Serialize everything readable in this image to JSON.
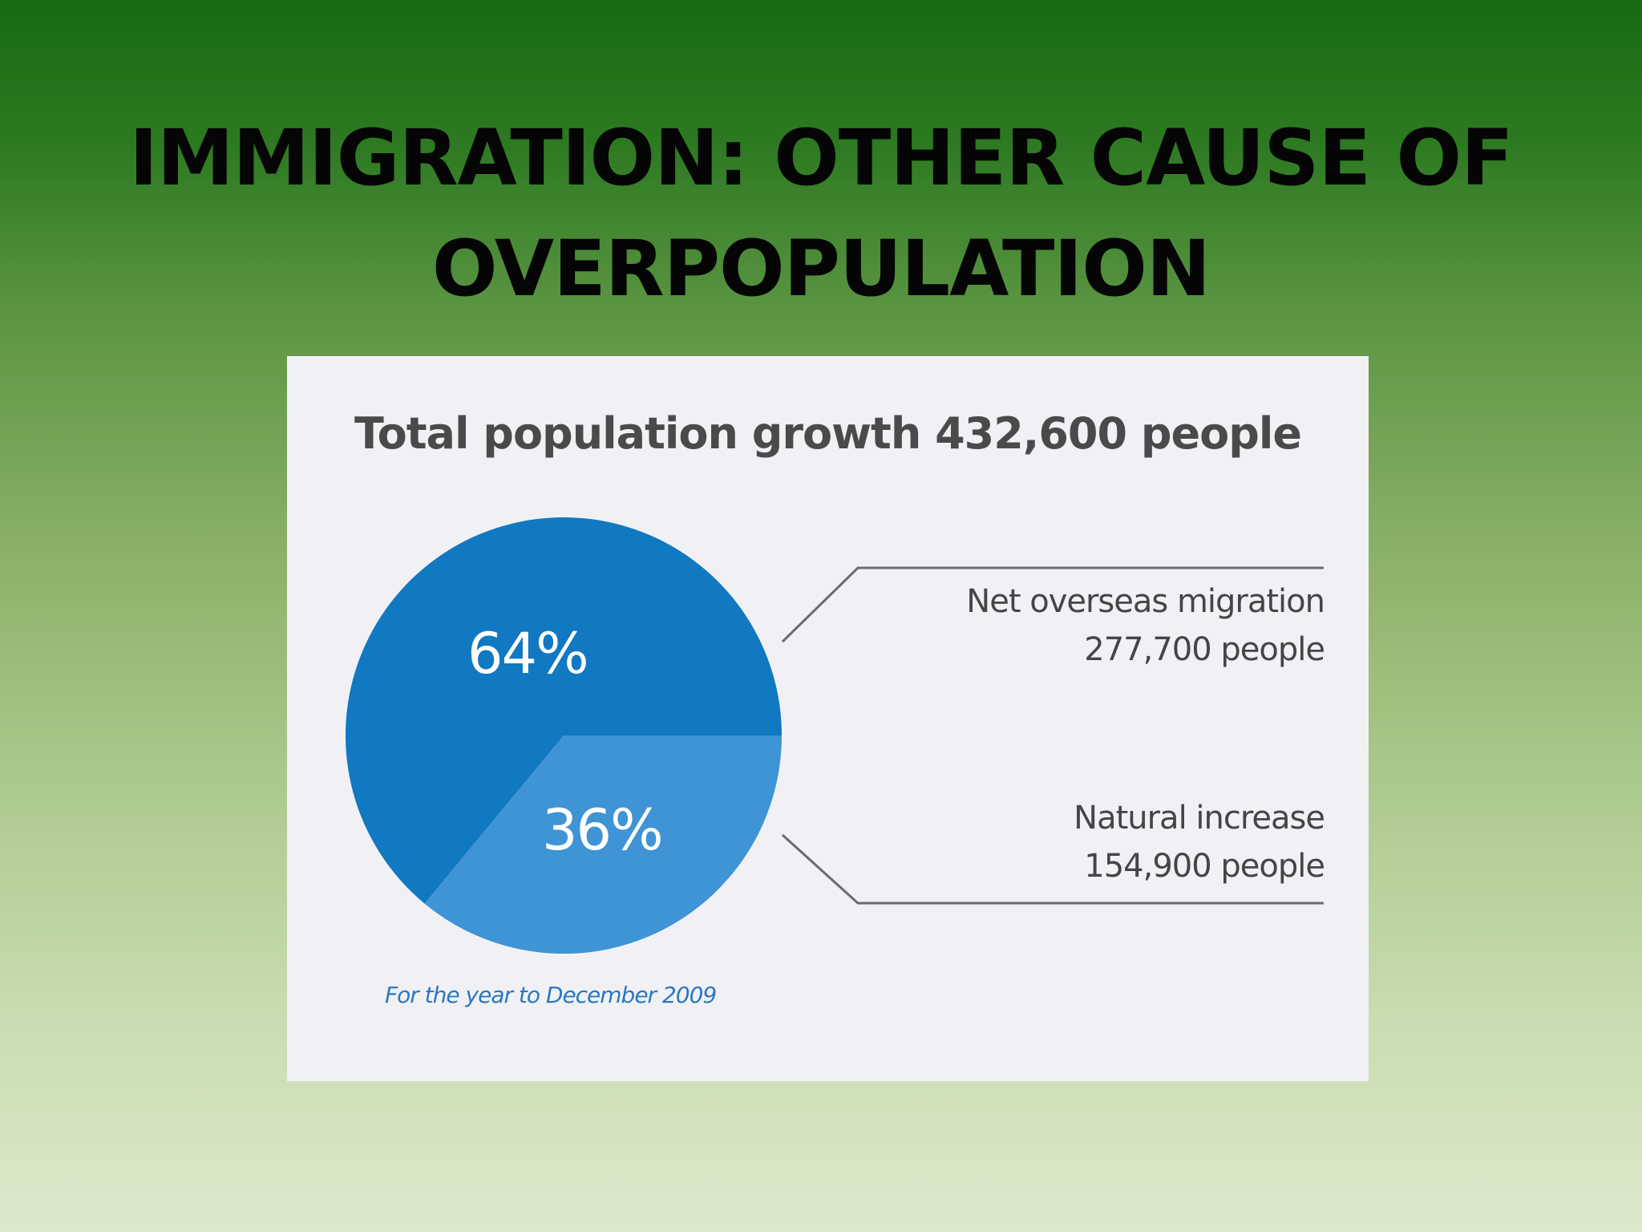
{
  "slide": {
    "title_line1": "IMMIGRATION: OTHER CAUSE OF",
    "title_line2": "OVERPOPULATION"
  },
  "chart_data": {
    "type": "pie",
    "title": "Total population growth 432,600 people",
    "slices": [
      {
        "name": "Net overseas migration",
        "detail": "277,700 people",
        "value": 277700,
        "percent_label": "64%",
        "percent": 64,
        "color": "#1178c2"
      },
      {
        "name": "Natural increase",
        "detail": "154,900 people",
        "value": 154900,
        "percent_label": "36%",
        "percent": 36,
        "color": "#3e94d4"
      }
    ],
    "footnote": "For the year to December 2009",
    "colors": {
      "panel_bg": "#f1f1f5",
      "leader_line": "#6b6b6b",
      "footnote": "#2c77c0"
    }
  }
}
